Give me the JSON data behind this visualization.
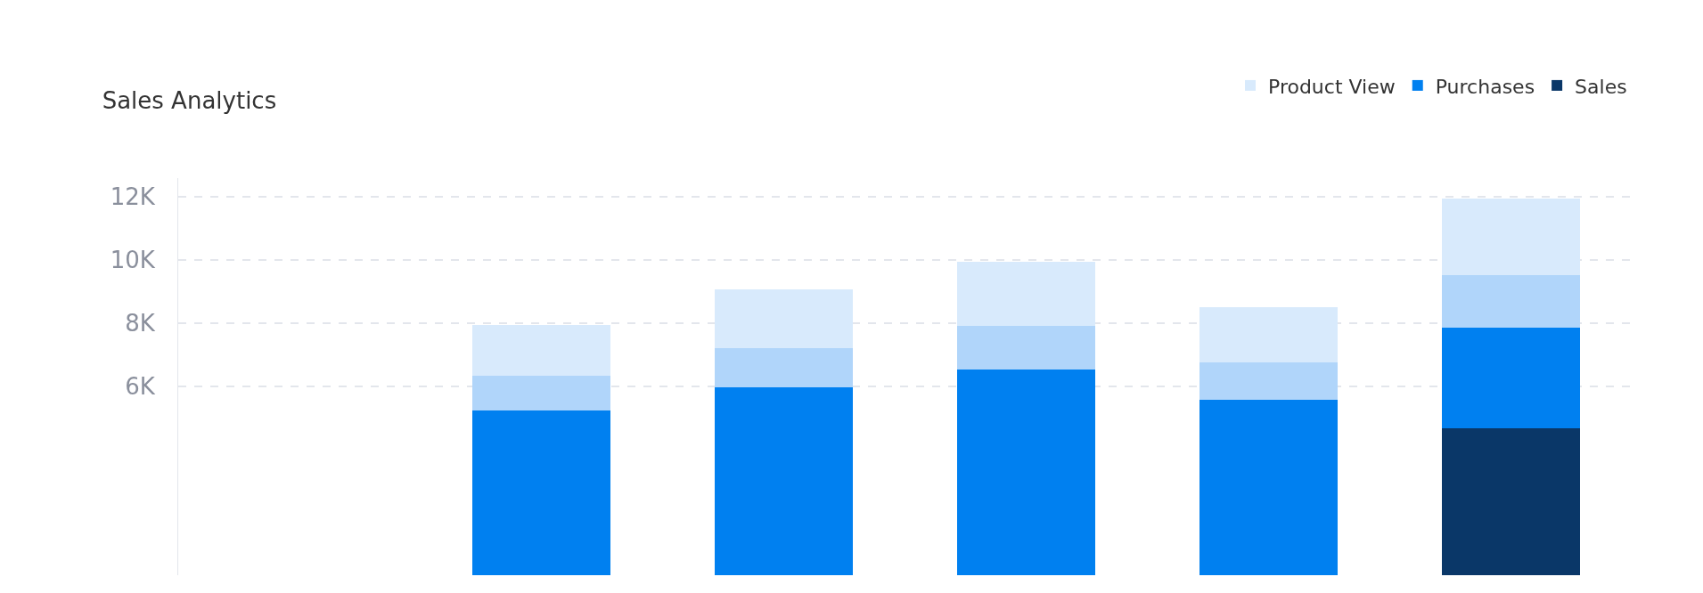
{
  "chart_data": {
    "type": "bar",
    "title": "Sales Analytics",
    "stacked": true,
    "categories": [
      null,
      null,
      null,
      null,
      null,
      null
    ],
    "series": [
      {
        "name": "Sales",
        "color": "#0a3768",
        "values": [
          null,
          null,
          null,
          null,
          null,
          4660
        ]
      },
      {
        "name": "Purchases",
        "color": "#0080f0",
        "values": [
          null,
          5230,
          5960,
          6530,
          5570,
          3190
        ]
      },
      {
        "color": "#b0d5fa",
        "values": [
          null,
          1100,
          1250,
          1370,
          1180,
          1670
        ]
      },
      {
        "name": "Product View",
        "color": "#d8eafc",
        "values": [
          null,
          1620,
          1870,
          2040,
          1740,
          2430
        ]
      }
    ],
    "ylim": [
      0,
      12600
    ],
    "yticks": [
      {
        "value": 6000,
        "label": "6K"
      },
      {
        "value": 8000,
        "label": "8K"
      },
      {
        "value": 10000,
        "label": "10K"
      },
      {
        "value": 12000,
        "label": "12K"
      }
    ],
    "grid": "y",
    "line_style": "dashed",
    "legend": "top right",
    "tick_labels": "y"
  }
}
